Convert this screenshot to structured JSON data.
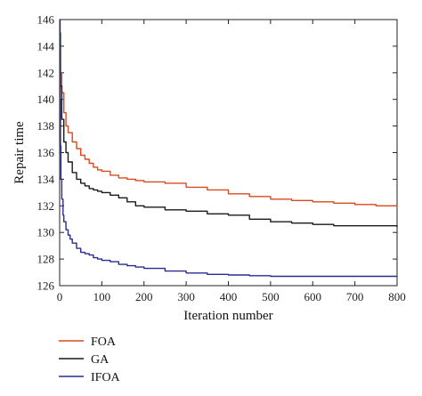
{
  "chart_data": {
    "type": "line",
    "title": "",
    "xlabel": "Iteration number",
    "ylabel": "Repair time",
    "xlim": [
      0,
      800
    ],
    "ylim": [
      126,
      146
    ],
    "xticks": [
      0,
      100,
      200,
      300,
      400,
      500,
      600,
      700,
      800
    ],
    "yticks": [
      126,
      128,
      130,
      132,
      134,
      136,
      138,
      140,
      142,
      144,
      146
    ],
    "grid": false,
    "legend_position": "below",
    "series": [
      {
        "name": "FOA",
        "color": "#d94a1e",
        "x": [
          0,
          2,
          5,
          10,
          15,
          20,
          30,
          40,
          50,
          60,
          70,
          80,
          90,
          100,
          120,
          140,
          160,
          180,
          200,
          250,
          300,
          350,
          400,
          450,
          500,
          550,
          600,
          650,
          700,
          750,
          800
        ],
        "y": [
          143.5,
          142,
          140.5,
          139,
          138,
          137.5,
          136.8,
          136.3,
          135.8,
          135.5,
          135.2,
          134.9,
          134.7,
          134.6,
          134.3,
          134.1,
          134.0,
          133.9,
          133.8,
          133.7,
          133.4,
          133.2,
          132.9,
          132.7,
          132.5,
          132.4,
          132.3,
          132.2,
          132.1,
          132.0,
          131.9
        ]
      },
      {
        "name": "GA",
        "color": "#1a1a1a",
        "x": [
          0,
          2,
          5,
          10,
          15,
          20,
          30,
          40,
          50,
          60,
          70,
          80,
          90,
          100,
          120,
          140,
          160,
          180,
          200,
          250,
          300,
          350,
          400,
          450,
          500,
          550,
          600,
          650,
          700,
          750,
          800
        ],
        "y": [
          145,
          141,
          138.5,
          136.8,
          136,
          135.3,
          134.5,
          134.0,
          133.7,
          133.5,
          133.3,
          133.2,
          133.1,
          133.0,
          132.8,
          132.6,
          132.3,
          132.0,
          131.9,
          131.7,
          131.6,
          131.4,
          131.3,
          131.0,
          130.8,
          130.7,
          130.6,
          130.5,
          130.5,
          130.5,
          130.4
        ]
      },
      {
        "name": "IFOA",
        "color": "#2b2b8f",
        "x": [
          0,
          1,
          2,
          3,
          5,
          8,
          10,
          15,
          20,
          25,
          30,
          40,
          50,
          60,
          70,
          80,
          90,
          100,
          120,
          140,
          160,
          180,
          200,
          250,
          300,
          350,
          400,
          450,
          500,
          550,
          600,
          650,
          700,
          750,
          800
        ],
        "y": [
          146,
          140,
          136.5,
          134,
          132.5,
          131.3,
          130.8,
          130.2,
          129.8,
          129.5,
          129.2,
          128.8,
          128.5,
          128.4,
          128.3,
          128.1,
          128.0,
          127.9,
          127.8,
          127.6,
          127.5,
          127.4,
          127.3,
          127.1,
          126.95,
          126.85,
          126.8,
          126.75,
          126.7,
          126.7,
          126.7,
          126.7,
          126.7,
          126.7,
          126.7
        ]
      }
    ]
  }
}
